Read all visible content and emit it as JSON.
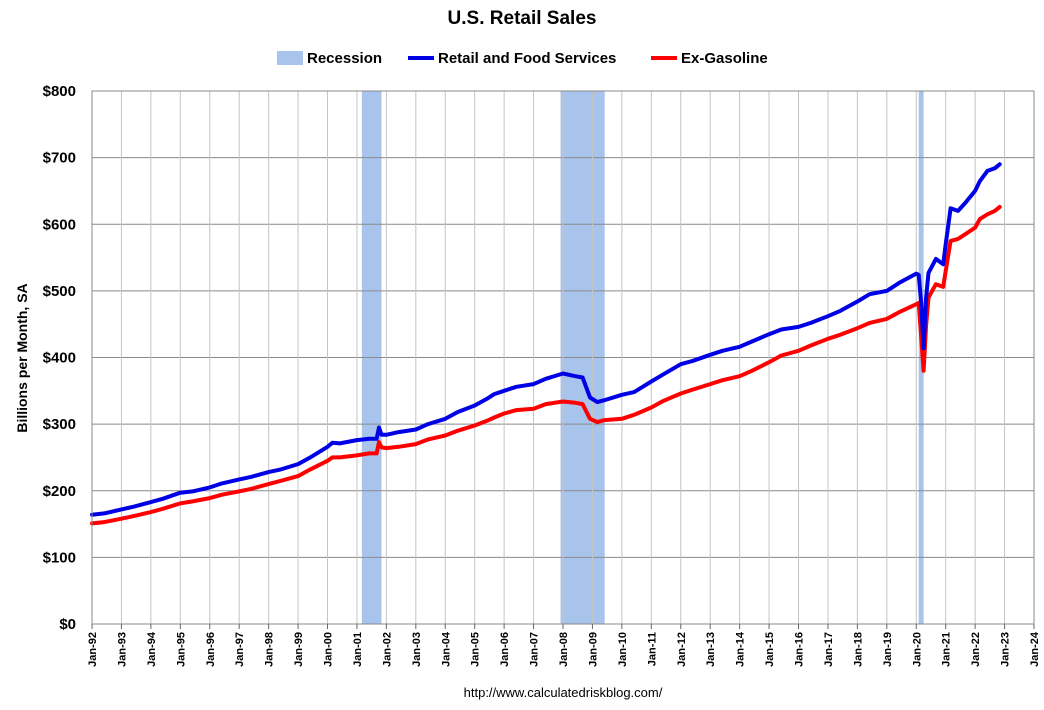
{
  "chart_data": {
    "type": "line",
    "title": "U.S. Retail Sales",
    "ylabel": "Billions per Month, SA",
    "xlabel": "",
    "source": "http://www.calculatedriskblog.com/",
    "ylim": [
      0,
      800
    ],
    "xlim": [
      "1992-01",
      "2024-01"
    ],
    "y_ticks": [
      0,
      100,
      200,
      300,
      400,
      500,
      600,
      700,
      800
    ],
    "y_tick_labels": [
      "$0",
      "$100",
      "$200",
      "$300",
      "$400",
      "$500",
      "$600",
      "$700",
      "$800"
    ],
    "x_tick_labels": [
      "Jan-92",
      "Jan-93",
      "Jan-94",
      "Jan-95",
      "Jan-96",
      "Jan-97",
      "Jan-98",
      "Jan-99",
      "Jan-00",
      "Jan-01",
      "Jan-02",
      "Jan-03",
      "Jan-04",
      "Jan-05",
      "Jan-06",
      "Jan-07",
      "Jan-08",
      "Jan-09",
      "Jan-10",
      "Jan-11",
      "Jan-12",
      "Jan-13",
      "Jan-14",
      "Jan-15",
      "Jan-16",
      "Jan-17",
      "Jan-18",
      "Jan-19",
      "Jan-20",
      "Jan-21",
      "Jan-22",
      "Jan-23",
      "Jan-24"
    ],
    "grid": true,
    "legend": {
      "placement": "top-center",
      "items": [
        {
          "label": "Recession",
          "color": "#a9c4ec",
          "kind": "box"
        },
        {
          "label": "Retail and Food Services",
          "color": "#0000e6",
          "kind": "line"
        },
        {
          "label": "Ex-Gasoline",
          "color": "#ff0000",
          "kind": "line"
        }
      ]
    },
    "recessions": [
      {
        "start": "2001-03",
        "end": "2001-11"
      },
      {
        "start": "2007-12",
        "end": "2009-06"
      },
      {
        "start": "2020-02",
        "end": "2020-04"
      }
    ],
    "series": [
      {
        "name": "Retail and Food Services",
        "color": "#0000e6",
        "points": [
          [
            "1992-01",
            164
          ],
          [
            "1992-06",
            166
          ],
          [
            "1993-01",
            172
          ],
          [
            "1993-06",
            176
          ],
          [
            "1994-01",
            183
          ],
          [
            "1994-06",
            188
          ],
          [
            "1995-01",
            197
          ],
          [
            "1995-06",
            199
          ],
          [
            "1996-01",
            205
          ],
          [
            "1996-06",
            211
          ],
          [
            "1997-01",
            217
          ],
          [
            "1997-06",
            221
          ],
          [
            "1998-01",
            228
          ],
          [
            "1998-06",
            232
          ],
          [
            "1999-01",
            240
          ],
          [
            "1999-06",
            250
          ],
          [
            "2000-01",
            266
          ],
          [
            "2000-03",
            272
          ],
          [
            "2000-06",
            271
          ],
          [
            "2001-01",
            276
          ],
          [
            "2001-06",
            278
          ],
          [
            "2001-09",
            278
          ],
          [
            "2001-10",
            295
          ],
          [
            "2001-11",
            284
          ],
          [
            "2002-01",
            284
          ],
          [
            "2002-06",
            288
          ],
          [
            "2003-01",
            292
          ],
          [
            "2003-06",
            300
          ],
          [
            "2004-01",
            308
          ],
          [
            "2004-06",
            318
          ],
          [
            "2005-01",
            328
          ],
          [
            "2005-06",
            338
          ],
          [
            "2005-09",
            345
          ],
          [
            "2006-01",
            350
          ],
          [
            "2006-06",
            356
          ],
          [
            "2007-01",
            360
          ],
          [
            "2007-06",
            368
          ],
          [
            "2008-01",
            376
          ],
          [
            "2008-06",
            372
          ],
          [
            "2008-09",
            370
          ],
          [
            "2008-12",
            340
          ],
          [
            "2009-03",
            333
          ],
          [
            "2009-06",
            336
          ],
          [
            "2010-01",
            344
          ],
          [
            "2010-06",
            348
          ],
          [
            "2011-01",
            364
          ],
          [
            "2011-06",
            375
          ],
          [
            "2012-01",
            390
          ],
          [
            "2012-06",
            395
          ],
          [
            "2013-01",
            404
          ],
          [
            "2013-06",
            410
          ],
          [
            "2014-01",
            416
          ],
          [
            "2014-06",
            424
          ],
          [
            "2015-01",
            435
          ],
          [
            "2015-06",
            442
          ],
          [
            "2016-01",
            446
          ],
          [
            "2016-06",
            452
          ],
          [
            "2017-01",
            462
          ],
          [
            "2017-06",
            470
          ],
          [
            "2018-01",
            484
          ],
          [
            "2018-06",
            495
          ],
          [
            "2019-01",
            500
          ],
          [
            "2019-06",
            512
          ],
          [
            "2020-01",
            526
          ],
          [
            "2020-02",
            524
          ],
          [
            "2020-03",
            482
          ],
          [
            "2020-04",
            414
          ],
          [
            "2020-05",
            490
          ],
          [
            "2020-06",
            527
          ],
          [
            "2020-09",
            548
          ],
          [
            "2020-12",
            540
          ],
          [
            "2021-01",
            570
          ],
          [
            "2021-03",
            624
          ],
          [
            "2021-06",
            620
          ],
          [
            "2021-09",
            632
          ],
          [
            "2022-01",
            650
          ],
          [
            "2022-03",
            665
          ],
          [
            "2022-06",
            680
          ],
          [
            "2022-09",
            684
          ],
          [
            "2022-11",
            690
          ]
        ]
      },
      {
        "name": "Ex-Gasoline",
        "color": "#ff0000",
        "points": [
          [
            "1992-01",
            151
          ],
          [
            "1992-06",
            153
          ],
          [
            "1993-01",
            158
          ],
          [
            "1993-06",
            162
          ],
          [
            "1994-01",
            168
          ],
          [
            "1994-06",
            173
          ],
          [
            "1995-01",
            181
          ],
          [
            "1995-06",
            184
          ],
          [
            "1996-01",
            189
          ],
          [
            "1996-06",
            194
          ],
          [
            "1997-01",
            199
          ],
          [
            "1997-06",
            203
          ],
          [
            "1998-01",
            210
          ],
          [
            "1998-06",
            215
          ],
          [
            "1999-01",
            222
          ],
          [
            "1999-06",
            232
          ],
          [
            "2000-01",
            245
          ],
          [
            "2000-03",
            250
          ],
          [
            "2000-06",
            250
          ],
          [
            "2001-01",
            253
          ],
          [
            "2001-06",
            256
          ],
          [
            "2001-09",
            256
          ],
          [
            "2001-10",
            273
          ],
          [
            "2001-11",
            265
          ],
          [
            "2002-01",
            264
          ],
          [
            "2002-06",
            266
          ],
          [
            "2003-01",
            270
          ],
          [
            "2003-06",
            277
          ],
          [
            "2004-01",
            283
          ],
          [
            "2004-06",
            290
          ],
          [
            "2005-01",
            298
          ],
          [
            "2005-06",
            305
          ],
          [
            "2005-09",
            310
          ],
          [
            "2006-01",
            316
          ],
          [
            "2006-06",
            321
          ],
          [
            "2007-01",
            323
          ],
          [
            "2007-06",
            330
          ],
          [
            "2008-01",
            334
          ],
          [
            "2008-06",
            332
          ],
          [
            "2008-09",
            330
          ],
          [
            "2008-12",
            308
          ],
          [
            "2009-03",
            303
          ],
          [
            "2009-06",
            306
          ],
          [
            "2010-01",
            308
          ],
          [
            "2010-06",
            314
          ],
          [
            "2011-01",
            325
          ],
          [
            "2011-06",
            335
          ],
          [
            "2012-01",
            346
          ],
          [
            "2012-06",
            352
          ],
          [
            "2013-01",
            360
          ],
          [
            "2013-06",
            366
          ],
          [
            "2014-01",
            372
          ],
          [
            "2014-06",
            380
          ],
          [
            "2015-01",
            393
          ],
          [
            "2015-06",
            403
          ],
          [
            "2016-01",
            410
          ],
          [
            "2016-06",
            418
          ],
          [
            "2017-01",
            428
          ],
          [
            "2017-06",
            434
          ],
          [
            "2018-01",
            444
          ],
          [
            "2018-06",
            452
          ],
          [
            "2019-01",
            458
          ],
          [
            "2019-06",
            468
          ],
          [
            "2020-01",
            480
          ],
          [
            "2020-02",
            482
          ],
          [
            "2020-03",
            430
          ],
          [
            "2020-04",
            380
          ],
          [
            "2020-05",
            448
          ],
          [
            "2020-06",
            490
          ],
          [
            "2020-09",
            510
          ],
          [
            "2020-12",
            506
          ],
          [
            "2021-01",
            530
          ],
          [
            "2021-03",
            575
          ],
          [
            "2021-06",
            578
          ],
          [
            "2021-09",
            585
          ],
          [
            "2022-01",
            595
          ],
          [
            "2022-03",
            608
          ],
          [
            "2022-06",
            615
          ],
          [
            "2022-09",
            620
          ],
          [
            "2022-11",
            626
          ]
        ]
      }
    ]
  }
}
